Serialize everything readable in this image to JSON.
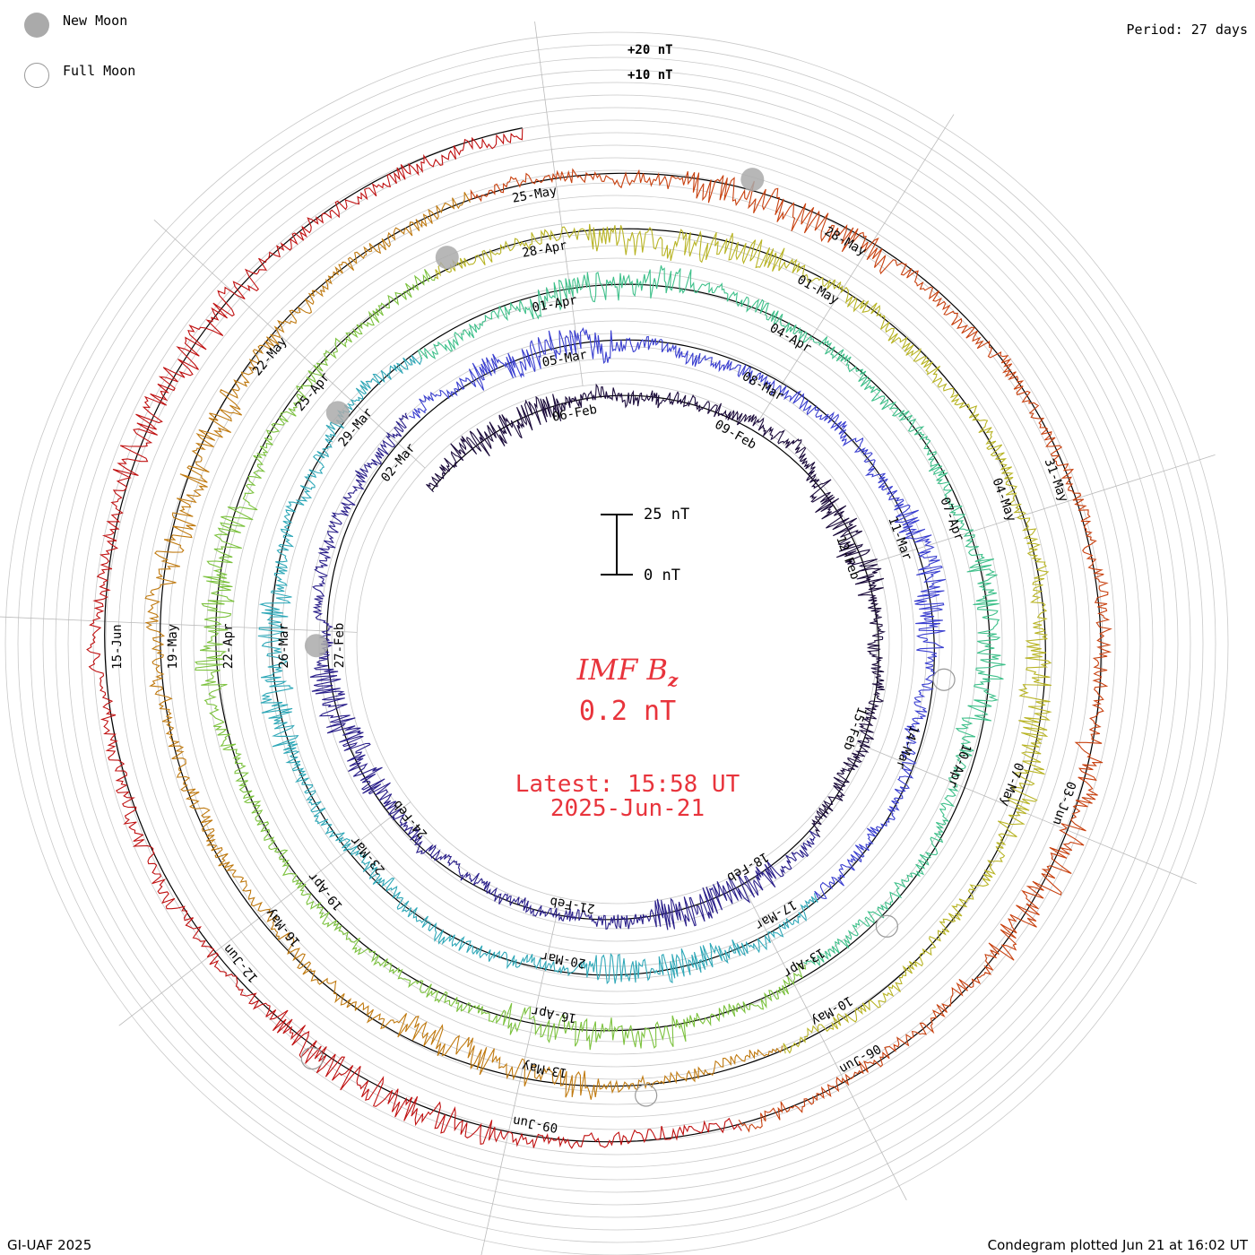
{
  "legend": {
    "new_moon": "New Moon",
    "full_moon": "Full Moon",
    "new_moon_color": "#aaaaaa"
  },
  "period": "Period: 27 days",
  "footer": {
    "left": "GI-UAF 2025",
    "right": "Condegram plotted Jun 21 at 16:02 UT"
  },
  "center": {
    "title": "IMF B",
    "subscript": "z",
    "value": "0.2 nT",
    "latest": "Latest: 15:58 UT",
    "date": "2025-Jun-21",
    "color": "#e8343c"
  },
  "scale_bar": {
    "top": "25 nT",
    "bottom": "0 nT"
  },
  "chart_data": {
    "type": "line",
    "title": "IMF Bz",
    "units": "nT",
    "period_days": 27,
    "start_date": "2025-02-03",
    "end_date": "2025-06-21",
    "radial_scale_labels": [
      "+20 nT",
      "+10 nT"
    ],
    "date_labels": [
      "06-Feb",
      "09-Feb",
      "12-Feb",
      "15-Feb",
      "18-Feb",
      "21-Feb",
      "24-Feb",
      "27-Feb",
      "02-Mar",
      "05-Mar",
      "08-Mar",
      "11-Mar",
      "14-Mar",
      "17-Mar",
      "20-Mar",
      "23-Mar",
      "26-Mar",
      "29-Mar",
      "01-Apr",
      "04-Apr",
      "07-Apr",
      "10-Apr",
      "13-Apr",
      "16-Apr",
      "19-Apr",
      "22-Apr",
      "25-Apr",
      "28-Apr",
      "01-May",
      "04-May",
      "07-May",
      "10-May",
      "13-May",
      "16-May",
      "19-May",
      "22-May",
      "25-May",
      "28-May",
      "31-May",
      "03-Jun",
      "06-Jun",
      "09-Jun",
      "12-Jun",
      "15-Jun"
    ],
    "series_colors": [
      "#1a0a3a",
      "#2a1f8a",
      "#3a3fd0",
      "#2fa8b8",
      "#3ec08a",
      "#7cc23e",
      "#b8b424",
      "#c07a10",
      "#c8400e",
      "#c01010"
    ],
    "moon_phases": [
      {
        "phase": "new",
        "date": "27-Feb"
      },
      {
        "phase": "new",
        "date": "29-Mar"
      },
      {
        "phase": "new",
        "date": "27-Apr"
      },
      {
        "phase": "new",
        "date": "27-May"
      },
      {
        "phase": "full",
        "date": "13-Mar"
      },
      {
        "phase": "full",
        "date": "12-Apr"
      },
      {
        "phase": "full",
        "date": "12-May"
      },
      {
        "phase": "full",
        "date": "11-Jun"
      }
    ],
    "latest_value": 0.2
  }
}
